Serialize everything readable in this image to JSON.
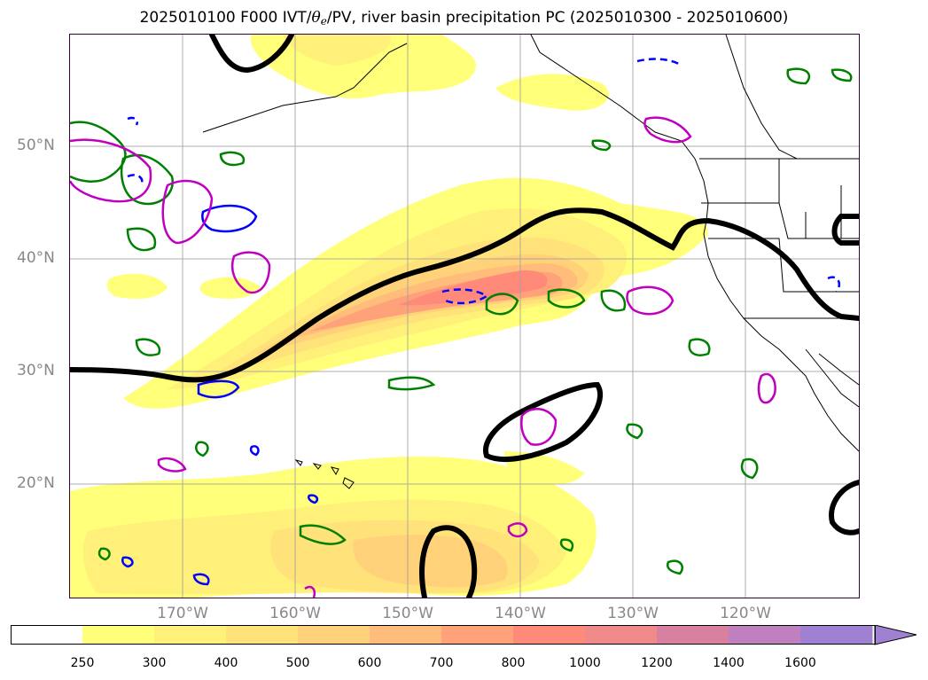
{
  "title": {
    "prefix": "2025010100 F000 IVT/",
    "theta": "θ",
    "theta_sub": "e",
    "suffix": "/PV, river basin precipitation PC (2025010300 - 2025010600)"
  },
  "lat_labels": [
    "50°N",
    "40°N",
    "30°N",
    "20°N"
  ],
  "lon_labels": [
    "170°W",
    "160°W",
    "150°W",
    "140°W",
    "130°W",
    "120°W"
  ],
  "colorbar": {
    "levels": [
      "250",
      "300",
      "400",
      "500",
      "600",
      "700",
      "800",
      "1000",
      "1200",
      "1400",
      "1600"
    ],
    "colors": [
      "#ffffff",
      "#ffff7a",
      "#fff07a",
      "#ffe27a",
      "#ffd27a",
      "#ffbc7a",
      "#ffa27a",
      "#ff8a7a",
      "#f08a8a",
      "#d880a0",
      "#c080c0",
      "#a080d0"
    ],
    "extend": "max"
  },
  "contour_colors": {
    "pv": "#000000",
    "theta_e_green": "#008000",
    "theta_e_blue": "#0000ff",
    "magenta": "#c000c0"
  }
}
